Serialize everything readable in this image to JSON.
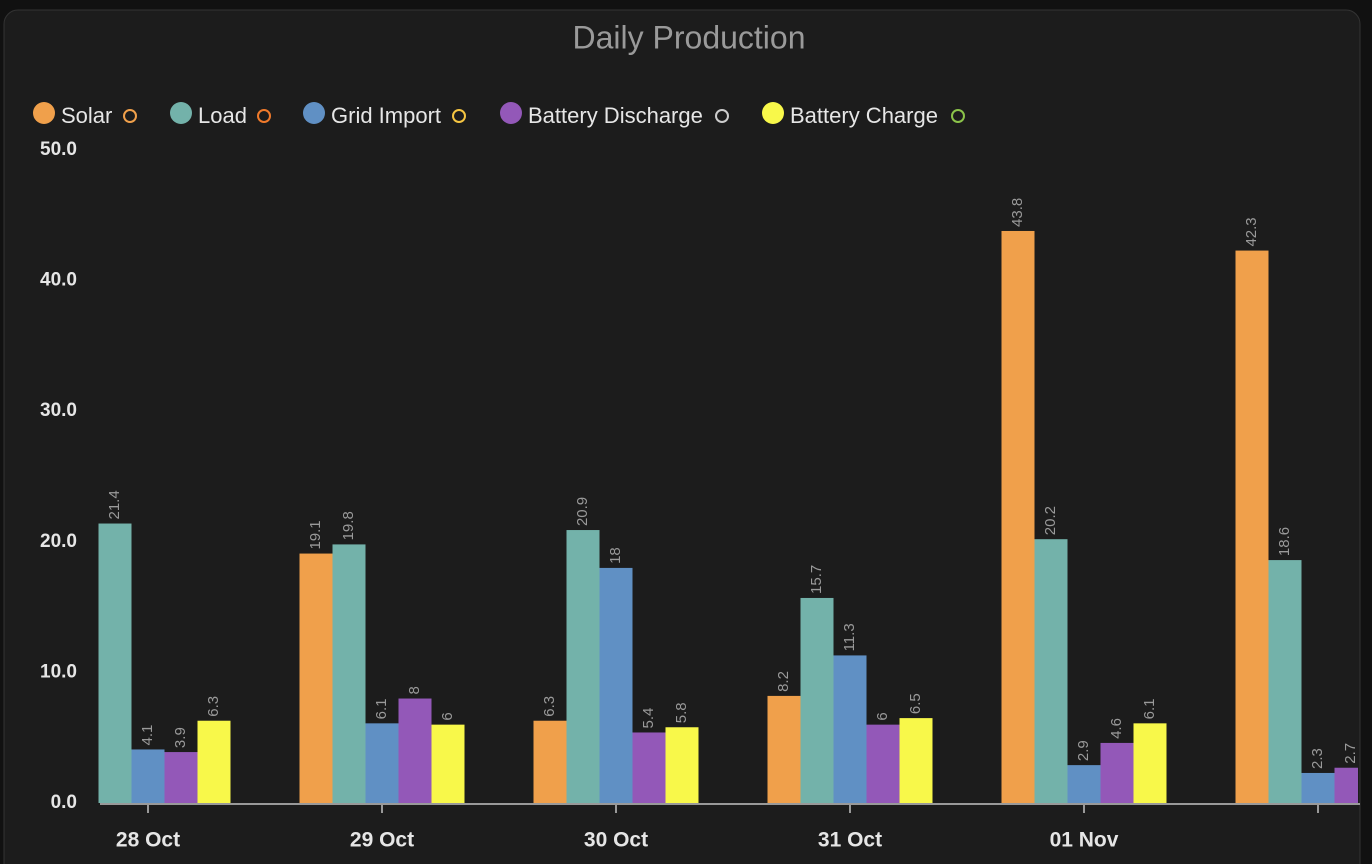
{
  "chart_data": {
    "type": "bar",
    "title": "Daily Production",
    "categories": [
      "28 Oct",
      "29 Oct",
      "30 Oct",
      "31 Oct",
      "01 Nov",
      null
    ],
    "series": [
      {
        "name": "Solar",
        "color": "#f0a04b",
        "values": [
          null,
          19.1,
          6.3,
          8.2,
          43.8,
          42.3
        ]
      },
      {
        "name": "Load",
        "color": "#73b2aa",
        "values": [
          21.4,
          19.8,
          20.9,
          15.7,
          20.2,
          18.6
        ]
      },
      {
        "name": "Grid Import",
        "color": "#6090c4",
        "values": [
          4.1,
          6.1,
          18,
          11.3,
          2.9,
          2.3
        ]
      },
      {
        "name": "Battery Discharge",
        "color": "#9358b8",
        "values": [
          3.9,
          8,
          5.4,
          6,
          4.6,
          2.7
        ]
      },
      {
        "name": "Battery Charge",
        "color": "#f8f84a",
        "values": [
          6.3,
          6,
          5.8,
          6.5,
          6.1,
          null
        ]
      }
    ],
    "ylim": [
      0,
      50
    ],
    "yticks": [
      {
        "value": 0,
        "label": "0.0"
      },
      {
        "value": 10,
        "label": "10.0"
      },
      {
        "value": 20,
        "label": "20.0"
      },
      {
        "value": 30,
        "label": "30.0"
      },
      {
        "value": 40,
        "label": "40.0"
      },
      {
        "value": 50,
        "label": "50.0"
      }
    ],
    "grid": false,
    "legend": "top"
  }
}
